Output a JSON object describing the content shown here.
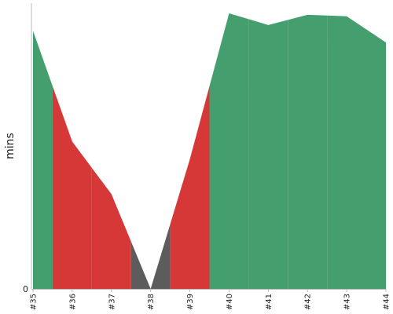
{
  "chart_data": {
    "type": "area",
    "title": "",
    "xlabel": "",
    "ylabel": "mins",
    "y_tick_labels": [
      "0"
    ],
    "categories": [
      "#35",
      "#36",
      "#37",
      "#38",
      "#39",
      "#40",
      "#41",
      "#42",
      "#43",
      "#44"
    ],
    "values": [
      88.5,
      50.5,
      32.5,
      0.0,
      44.5,
      94.5,
      90.5,
      94.0,
      93.5,
      84.5
    ],
    "ylim": [
      0,
      98
    ],
    "grid": false,
    "legend": "none",
    "segment_status": [
      "success",
      "failure",
      "failure",
      "unstable",
      "failure",
      "success",
      "success",
      "success",
      "success"
    ],
    "status_colors": {
      "success": "#459e6e",
      "failure": "#d63737",
      "unstable": "#5c5c5c"
    },
    "axis_color": "#bbbbbb"
  }
}
